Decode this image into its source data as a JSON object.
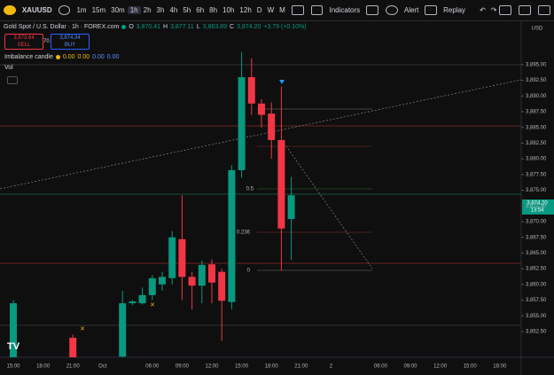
{
  "toolbar": {
    "symbol": "XAUUSD",
    "intervals": [
      "1m",
      "15m",
      "30m",
      "1h",
      "2h",
      "3h",
      "4h",
      "5h",
      "6h",
      "8h",
      "10h",
      "12h",
      "D",
      "W",
      "M"
    ],
    "indicators": "Indicators",
    "alert": "Alert",
    "replay": "Replay"
  },
  "legend": {
    "title": "Gold Spot / U.S. Dollar · 1h · FOREX.com",
    "ohlc": [
      [
        "O",
        "3,870.41"
      ],
      [
        "H",
        "3,877.11"
      ],
      [
        "L",
        "3,863.89"
      ],
      [
        "C",
        "3,874.20"
      ]
    ],
    "change": "+3.79 (+0.10%)",
    "sell_price": "3,873.64",
    "sell": "SELL",
    "spread": "70",
    "buy_price": "3,874.34",
    "buy": "BUY",
    "indicator": "Imbalance candle",
    "indicator_values": [
      "0.00",
      "0.00",
      "0.00",
      "0.00"
    ],
    "volume": "Vol"
  },
  "chart_data": {
    "type": "candlestick",
    "categories": [
      "15:00",
      null,
      null,
      "18:00",
      null,
      null,
      "21:00",
      null,
      null,
      "Oct",
      null,
      null,
      null,
      null,
      "06:00",
      null,
      null,
      "09:00",
      null,
      null,
      "12:00",
      null,
      null,
      "15:00",
      null,
      null,
      "18:00",
      null,
      null,
      "21:00",
      null,
      null,
      "2",
      null,
      null,
      null,
      null,
      "06:00",
      null,
      null,
      "09:00",
      null,
      null,
      "12:00",
      null,
      null,
      "15:00",
      null,
      null,
      "18:00"
    ],
    "open": [
      3848,
      null,
      null,
      null,
      null,
      null,
      3851.5,
      null,
      null,
      null,
      null,
      3848.5,
      3857,
      3857,
      3858.3,
      3860,
      3861,
      3867.2,
      3861.2,
      3859.8,
      3863.2,
      3862,
      3857.2,
      3878.2,
      3893,
      3888.8,
      3887.2,
      3883,
      3870.41,
      null,
      null,
      null,
      null,
      null,
      null,
      null,
      null,
      null,
      null,
      null,
      null,
      null,
      null,
      null,
      null,
      null,
      null,
      null,
      null,
      null
    ],
    "high": [
      3857.5,
      null,
      null,
      null,
      null,
      null,
      3852,
      null,
      null,
      null,
      null,
      3859,
      3857.5,
      3859.5,
      3861.5,
      3862,
      3868.5,
      3874.2,
      3862,
      3863.8,
      3864,
      3862.5,
      3879,
      3897,
      3896,
      3889.5,
      3889,
      3891.5,
      3877.11,
      null,
      null,
      null,
      null,
      null,
      null,
      null,
      null,
      null,
      null,
      null,
      null,
      null,
      null,
      null,
      null,
      null,
      null,
      null,
      null,
      null
    ],
    "low": [
      3846,
      null,
      null,
      null,
      null,
      null,
      3846,
      null,
      null,
      null,
      null,
      3846,
      3856.7,
      3856.8,
      3857.5,
      3859,
      3860,
      3857.5,
      3856,
      3857,
      3857,
      3851,
      3856,
      3877,
      3887,
      3885,
      3880,
      3862.2,
      3863.89,
      null,
      null,
      null,
      null,
      null,
      null,
      null,
      null,
      null,
      null,
      null,
      null,
      null,
      null,
      null,
      null,
      null,
      null,
      null,
      null,
      null
    ],
    "close": [
      3857,
      null,
      null,
      null,
      null,
      null,
      3848,
      null,
      null,
      null,
      null,
      3857,
      3857.3,
      3858.3,
      3861,
      3861.2,
      3867.5,
      3861.2,
      3859.8,
      3863.1,
      3860.3,
      3857.4,
      3878.2,
      3893,
      3888.8,
      3887,
      3883,
      3868.9,
      3874.2,
      null,
      null,
      null,
      null,
      null,
      null,
      null,
      null,
      null,
      null,
      null,
      null,
      null,
      null,
      null,
      null,
      null,
      null,
      null,
      null,
      null
    ],
    "up_color": "#089981",
    "down_color": "#f23645",
    "ylim": [
      3848.4,
      3901.9
    ],
    "yticks": [
      {
        "value": 3852.5,
        "label": "3,852.50"
      },
      {
        "value": 3855,
        "label": "3,855.00"
      },
      {
        "value": 3857.5,
        "label": "3,857.50"
      },
      {
        "value": 3860,
        "label": "3,860.00"
      },
      {
        "value": 3862.5,
        "label": "3,862.50"
      },
      {
        "value": 3865,
        "label": "3,865.00"
      },
      {
        "value": 3867.5,
        "label": "3,867.50"
      },
      {
        "value": 3870,
        "label": "3,870.00"
      },
      {
        "value": 3872.5,
        "label": "3,872.50"
      },
      {
        "value": 3875,
        "label": "3,875.00"
      },
      {
        "value": 3877.5,
        "label": "3,877.50"
      },
      {
        "value": 3880,
        "label": "3,880.00"
      },
      {
        "value": 3882.5,
        "label": "3,882.50"
      },
      {
        "value": 3885,
        "label": "3,885.00"
      },
      {
        "value": 3887.5,
        "label": "3,887.50"
      },
      {
        "value": 3890,
        "label": "3,890.00"
      },
      {
        "value": 3892.5,
        "label": "3,892.50"
      },
      {
        "value": 3895,
        "label": "3,895.00"
      }
    ],
    "currency": "USD",
    "last_price_label": "3,874.20",
    "countdown": "13:54",
    "fib_labels": [
      "0.5",
      "0.236",
      "0"
    ]
  }
}
